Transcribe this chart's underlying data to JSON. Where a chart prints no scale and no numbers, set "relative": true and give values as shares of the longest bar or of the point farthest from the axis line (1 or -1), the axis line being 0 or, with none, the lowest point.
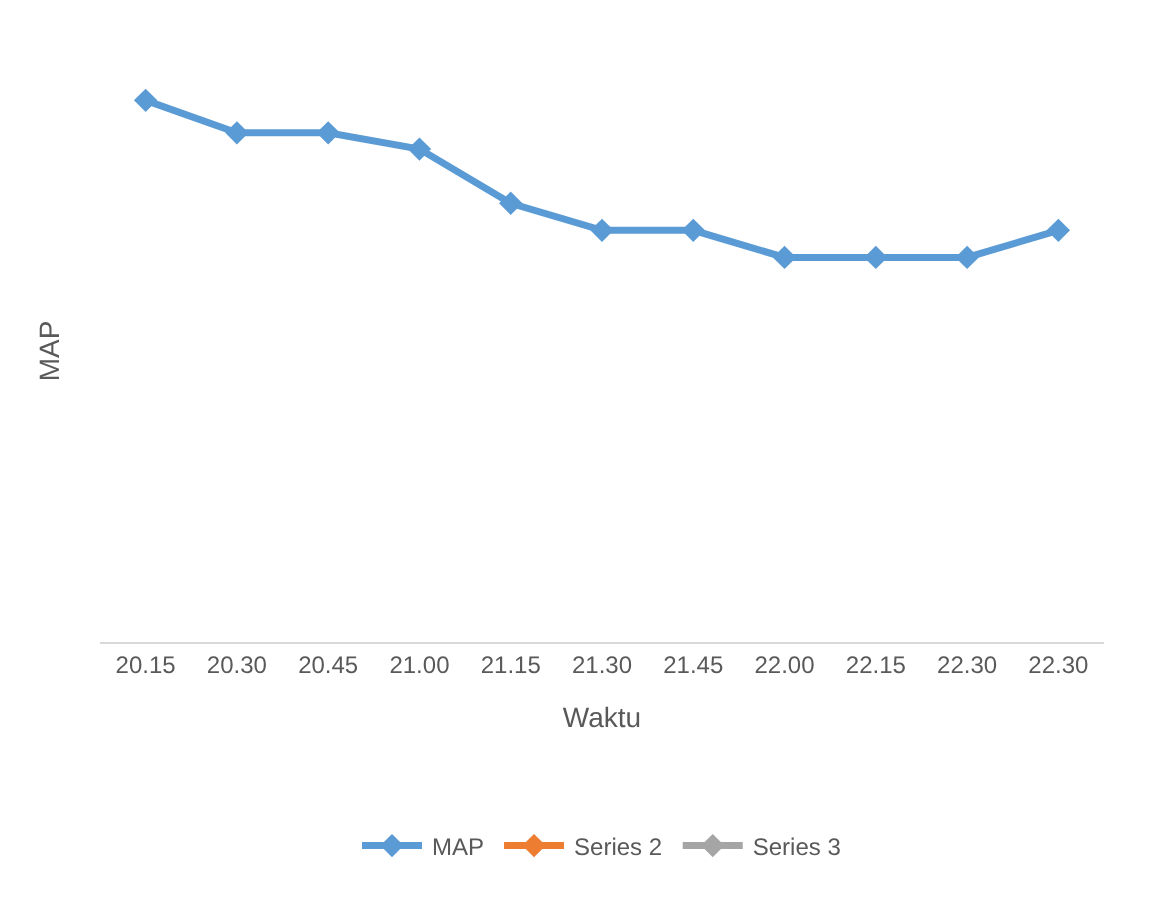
{
  "chart_data": {
    "type": "line",
    "xlabel": "Waktu",
    "ylabel": "MAP",
    "relative": true,
    "legend": "bottom",
    "marker": "diamond",
    "categories": [
      "20.15",
      "20.30",
      "20.45",
      "21.00",
      "21.15",
      "21.30",
      "21.45",
      "22.00",
      "22.15",
      "22.30",
      "22.30"
    ],
    "series": [
      {
        "name": "MAP",
        "color": "#5b9bd5",
        "values": [
          1,
          0.94,
          0.94,
          0.91,
          0.81,
          0.76,
          0.76,
          0.71,
          0.71,
          0.71,
          0.76
        ]
      },
      {
        "name": "Series 2",
        "color": "#ed7d31",
        "values": [
          null,
          null,
          null,
          null,
          null,
          null,
          null,
          null,
          null,
          null,
          null
        ]
      },
      {
        "name": "Series 3",
        "color": "#a5a5a5",
        "values": [
          null,
          null,
          null,
          null,
          null,
          null,
          null,
          null,
          null,
          null,
          null
        ]
      }
    ]
  }
}
